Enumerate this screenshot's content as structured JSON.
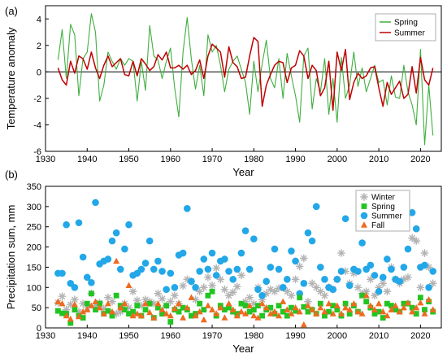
{
  "chart_data": [
    {
      "type": "line",
      "panel_label": "(a)",
      "xlabel": "Year",
      "ylabel": "Temperature anomaly",
      "xlim": [
        1930,
        2025
      ],
      "ylim": [
        -6,
        5
      ],
      "x_ticks": [
        1930,
        1940,
        1950,
        1960,
        1970,
        1980,
        1990,
        2000,
        2010,
        2020
      ],
      "y_ticks": [
        -6,
        -4,
        -2,
        0,
        2,
        4
      ],
      "zero_line": true,
      "legend_position": "top-right",
      "colors": {
        "Spring": "#3fae3f",
        "Summer": "#c00000"
      },
      "x": [
        1933,
        1934,
        1935,
        1936,
        1937,
        1938,
        1939,
        1940,
        1941,
        1942,
        1943,
        1944,
        1945,
        1946,
        1947,
        1948,
        1949,
        1950,
        1951,
        1952,
        1953,
        1954,
        1955,
        1956,
        1957,
        1958,
        1959,
        1960,
        1961,
        1962,
        1963,
        1964,
        1965,
        1966,
        1967,
        1968,
        1969,
        1970,
        1971,
        1972,
        1973,
        1974,
        1975,
        1976,
        1977,
        1978,
        1979,
        1980,
        1981,
        1982,
        1983,
        1984,
        1985,
        1986,
        1987,
        1988,
        1989,
        1990,
        1991,
        1992,
        1993,
        1994,
        1995,
        1996,
        1997,
        1998,
        1999,
        2000,
        2001,
        2002,
        2003,
        2004,
        2005,
        2006,
        2007,
        2008,
        2009,
        2010,
        2011,
        2012,
        2013,
        2014,
        2015,
        2016,
        2017,
        2018,
        2019,
        2020,
        2021,
        2022,
        2023
      ],
      "series": [
        {
          "name": "Spring",
          "values": [
            0.9,
            3.2,
            -0.5,
            3.6,
            2.8,
            -1.8,
            1.0,
            1.5,
            4.4,
            3.0,
            -2.2,
            -1.0,
            1.5,
            0.8,
            0.2,
            1.0,
            0.5,
            1.0,
            0.8,
            -2.2,
            0.8,
            -1.4,
            3.5,
            1.2,
            0.9,
            -0.5,
            0.8,
            1.8,
            -1.2,
            -3.4,
            1.5,
            4.1,
            1.0,
            -1.3,
            0.5,
            -1.8,
            2.8,
            1.5,
            2.0,
            0.5,
            -1.5,
            0.2,
            0.8,
            1.2,
            0.2,
            -0.8,
            -3.2,
            0.8,
            -1.5,
            0.6,
            2.4,
            -0.5,
            -1.2,
            1.0,
            -2.0,
            1.4,
            -0.3,
            -1.8,
            -3.8,
            1.2,
            1.8,
            -2.8,
            -0.5,
            -1.5,
            1.0,
            -3.2,
            -0.5,
            -3.8,
            1.1,
            -2.0,
            -1.0,
            1.5,
            -1.1,
            0.3,
            -1.5,
            -0.5,
            0.5,
            -0.8,
            -0.6,
            -2.5,
            -0.3,
            -1.9,
            -2.0,
            0.5,
            -1.5,
            -2.5,
            -4.0,
            1.7,
            -5.5,
            -1.0,
            -4.8
          ]
        },
        {
          "name": "Summer",
          "values": [
            0.3,
            -0.6,
            -1.0,
            0.8,
            -0.1,
            1.2,
            1.0,
            0.2,
            1.5,
            0.3,
            -0.5,
            0.5,
            1.2,
            0.4,
            0.7,
            1.0,
            -0.2,
            -0.3,
            0.8,
            -0.3,
            1.0,
            0.6,
            0.1,
            0.4,
            1.3,
            0.9,
            1.5,
            0.3,
            0.3,
            0.5,
            0.2,
            0.5,
            -0.2,
            0.1,
            0.9,
            -0.5,
            1.2,
            2.1,
            1.8,
            1.5,
            -0.4,
            1.9,
            0.7,
            0.4,
            -0.5,
            -0.4,
            1.2,
            2.6,
            2.3,
            -2.6,
            -1.0,
            -0.2,
            0.5,
            0.8,
            0.7,
            -0.8,
            0.3,
            0.5,
            1.6,
            1.2,
            -0.5,
            0.5,
            0.1,
            -1.8,
            -1.2,
            0.8,
            -2.9,
            1.5,
            0.1,
            1.7,
            -2.1,
            -0.8,
            -0.1,
            -0.5,
            -0.3,
            0.3,
            0.4,
            -1.2,
            -2.6,
            -0.8,
            -1.7,
            -1.2,
            -0.7,
            -2.0,
            -1.7,
            0.4,
            -1.6,
            1.1,
            -0.6,
            -1.0,
            0.3
          ]
        }
      ]
    },
    {
      "type": "scatter",
      "panel_label": "(b)",
      "xlabel": "Year",
      "ylabel": "Precipitation sum, mm",
      "xlim": [
        1930,
        2025
      ],
      "ylim": [
        0,
        350
      ],
      "x_ticks": [
        1930,
        1940,
        1950,
        1960,
        1970,
        1980,
        1990,
        2000,
        2010,
        2020
      ],
      "y_ticks": [
        0,
        50,
        100,
        150,
        200,
        250,
        300,
        350
      ],
      "legend_position": "top-right",
      "colors": {
        "Winter": "#b3b3b3",
        "Spring": "#22c422",
        "Summer": "#22a7e8",
        "Fall": "#ee6a1e"
      },
      "markers": {
        "Winter": "asterisk-icon",
        "Spring": "square-icon",
        "Summer": "circle-icon",
        "Fall": "triangle-icon"
      },
      "x": [
        1933,
        1934,
        1935,
        1936,
        1937,
        1938,
        1939,
        1940,
        1941,
        1942,
        1943,
        1944,
        1945,
        1946,
        1947,
        1948,
        1949,
        1950,
        1951,
        1952,
        1953,
        1954,
        1955,
        1956,
        1957,
        1958,
        1959,
        1960,
        1961,
        1962,
        1963,
        1964,
        1965,
        1966,
        1967,
        1968,
        1969,
        1970,
        1971,
        1972,
        1973,
        1974,
        1975,
        1976,
        1977,
        1978,
        1979,
        1980,
        1981,
        1982,
        1983,
        1984,
        1985,
        1986,
        1987,
        1988,
        1989,
        1990,
        1991,
        1992,
        1993,
        1994,
        1995,
        1996,
        1997,
        1998,
        1999,
        2000,
        2001,
        2002,
        2003,
        2004,
        2005,
        2006,
        2007,
        2008,
        2009,
        2010,
        2011,
        2012,
        2013,
        2014,
        2015,
        2016,
        2017,
        2018,
        2019,
        2020,
        2021,
        2022,
        2023
      ],
      "series": [
        {
          "name": "Winter",
          "values": [
            62,
            78,
            45,
            58,
            70,
            40,
            60,
            50,
            85,
            55,
            62,
            48,
            75,
            65,
            35,
            40,
            60,
            50,
            90,
            68,
            55,
            70,
            65,
            60,
            85,
            72,
            55,
            65,
            80,
            60,
            104,
            120,
            115,
            70,
            90,
            100,
            125,
            105,
            148,
            120,
            95,
            80,
            88,
            102,
            130,
            65,
            75,
            60,
            100,
            70,
            85,
            95,
            90,
            98,
            100,
            90,
            80,
            120,
            152,
            172,
            65,
            110,
            100,
            90,
            80,
            100,
            95,
            120,
            185,
            140,
            110,
            135,
            100,
            85,
            90,
            120,
            80,
            100,
            110,
            90,
            150,
            120,
            110,
            120,
            125,
            222,
            215,
            100,
            185,
            150,
            110
          ]
        },
        {
          "name": "Spring",
          "values": [
            42,
            36,
            35,
            12,
            45,
            30,
            25,
            60,
            85,
            45,
            60,
            35,
            42,
            30,
            80,
            55,
            45,
            35,
            40,
            55,
            30,
            45,
            60,
            25,
            50,
            35,
            55,
            15,
            45,
            40,
            50,
            45,
            30,
            35,
            60,
            45,
            80,
            90,
            30,
            55,
            45,
            50,
            40,
            35,
            60,
            55,
            40,
            45,
            55,
            30,
            45,
            50,
            35,
            55,
            40,
            30,
            50,
            42,
            75,
            52,
            40,
            45,
            35,
            60,
            30,
            40,
            55,
            45,
            30,
            60,
            35,
            55,
            40,
            80,
            65,
            50,
            35,
            40,
            25,
            60,
            55,
            45,
            40,
            60,
            60,
            50,
            35,
            75,
            45,
            65,
            40
          ]
        },
        {
          "name": "Summer",
          "values": [
            135,
            135,
            255,
            110,
            100,
            260,
            175,
            125,
            112,
            310,
            158,
            165,
            170,
            215,
            235,
            145,
            195,
            255,
            130,
            135,
            145,
            160,
            215,
            145,
            165,
            140,
            95,
            135,
            100,
            180,
            185,
            295,
            115,
            100,
            140,
            170,
            145,
            185,
            130,
            165,
            170,
            140,
            120,
            145,
            185,
            240,
            145,
            220,
            95,
            80,
            115,
            150,
            195,
            145,
            100,
            120,
            190,
            165,
            85,
            110,
            235,
            215,
            300,
            150,
            120,
            100,
            95,
            120,
            140,
            270,
            105,
            145,
            140,
            210,
            145,
            155,
            130,
            90,
            125,
            170,
            145,
            120,
            115,
            150,
            195,
            285,
            245,
            150,
            155,
            100,
            140
          ]
        },
        {
          "name": "Fall",
          "values": [
            65,
            60,
            30,
            22,
            58,
            28,
            40,
            45,
            55,
            65,
            50,
            35,
            60,
            40,
            165,
            50,
            60,
            105,
            30,
            35,
            30,
            60,
            38,
            25,
            60,
            45,
            35,
            30,
            48,
            60,
            25,
            50,
            75,
            30,
            40,
            20,
            55,
            45,
            35,
            50,
            25,
            60,
            45,
            30,
            40,
            35,
            55,
            30,
            25,
            60,
            50,
            35,
            40,
            30,
            65,
            45,
            35,
            50,
            40,
            8,
            55,
            45,
            35,
            50,
            40,
            60,
            35,
            55,
            35,
            50,
            45,
            60,
            40,
            35,
            80,
            55,
            45,
            60,
            40,
            30,
            45,
            55,
            40,
            50,
            62,
            40,
            50,
            62,
            35,
            70,
            45
          ]
        }
      ]
    }
  ]
}
